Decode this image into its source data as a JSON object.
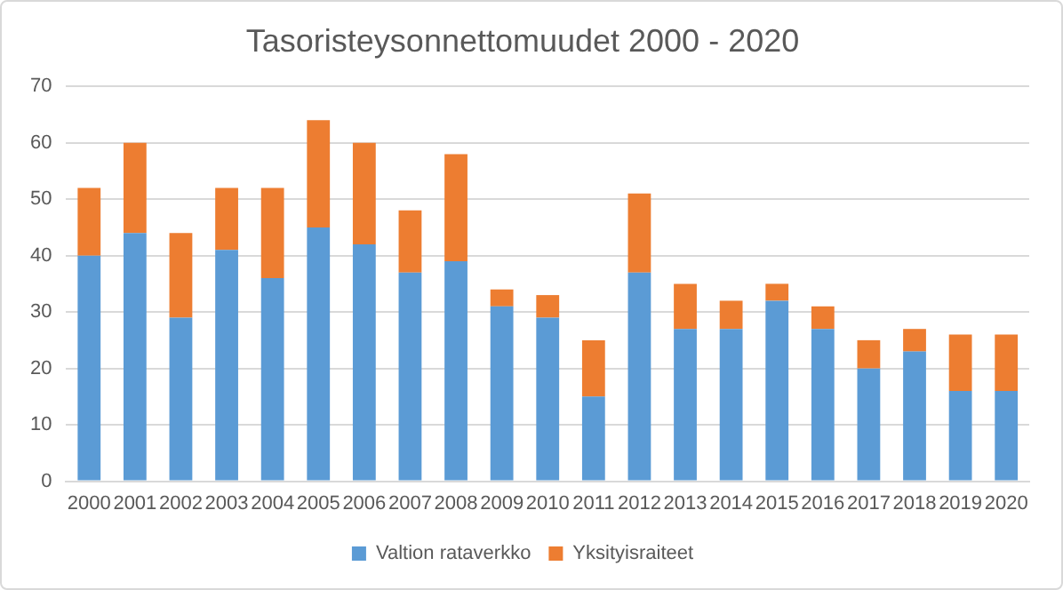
{
  "chart_data": {
    "type": "bar",
    "title": "Tasoristeysonnettomuudet 2000 - 2020",
    "stacked": true,
    "categories": [
      "2000",
      "2001",
      "2002",
      "2003",
      "2004",
      "2005",
      "2006",
      "2007",
      "2008",
      "2009",
      "2010",
      "2011",
      "2012",
      "2013",
      "2014",
      "2015",
      "2016",
      "2017",
      "2018",
      "2019",
      "2020"
    ],
    "series": [
      {
        "name": "Valtion rataverkko",
        "color": "#5b9bd5",
        "values": [
          40,
          44,
          29,
          41,
          36,
          45,
          42,
          37,
          39,
          31,
          29,
          15,
          37,
          27,
          27,
          32,
          27,
          20,
          23,
          16,
          16
        ]
      },
      {
        "name": "Yksityisraiteet",
        "color": "#ed7d31",
        "values": [
          12,
          16,
          15,
          11,
          16,
          19,
          18,
          11,
          19,
          3,
          4,
          10,
          14,
          8,
          5,
          3,
          4,
          5,
          4,
          10,
          10
        ]
      }
    ],
    "ylim": [
      0,
      70
    ],
    "yticks": [
      0,
      10,
      20,
      30,
      40,
      50,
      60,
      70
    ],
    "grid": "y",
    "legend": "bottom"
  }
}
